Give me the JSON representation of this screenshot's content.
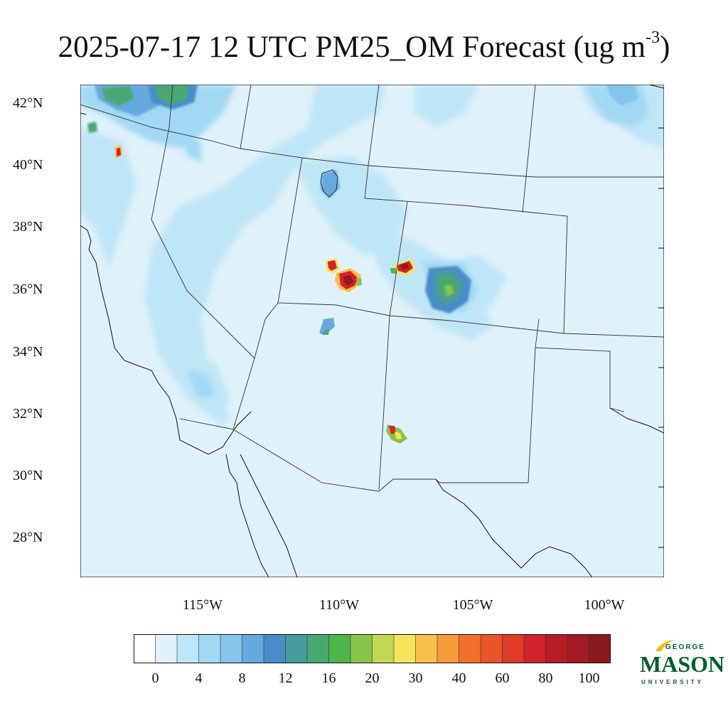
{
  "title": {
    "prefix": "2025-07-17 12 UTC PM25_OM Forecast (ug m",
    "superscript": "-3",
    "suffix": ")"
  },
  "map": {
    "lat_labels": [
      "42°N",
      "40°N",
      "38°N",
      "36°N",
      "34°N",
      "32°N",
      "30°N",
      "28°N"
    ],
    "lon_labels": [
      "115°W",
      "110°W",
      "105°W",
      "100°W"
    ],
    "background_color": "#dff1fa",
    "hotspots": [
      {
        "name": "utah-fire-1",
        "peak_level": "100+"
      },
      {
        "name": "colorado-fire",
        "peak_level": "100+"
      },
      {
        "name": "nm-smoke-cluster",
        "peak_level": "16-20"
      },
      {
        "name": "nevada-fire",
        "peak_level": "60"
      },
      {
        "name": "arizona-fire",
        "peak_level": "16"
      },
      {
        "name": "southern-nm-fire",
        "peak_level": "80"
      }
    ]
  },
  "colorbar": {
    "colors": [
      "#ffffff",
      "#dff1fa",
      "#bfe6f7",
      "#a1d9f3",
      "#85c5ea",
      "#66a9de",
      "#4a8cca",
      "#479a9e",
      "#48a872",
      "#4db64a",
      "#88c44b",
      "#c4d655",
      "#f6e55a",
      "#f8bf4a",
      "#f69a3a",
      "#f2702c",
      "#e95428",
      "#e03b26",
      "#d2222a",
      "#b81c27",
      "#a21a23",
      "#8a1a1d"
    ],
    "labels": [
      "0",
      "4",
      "8",
      "12",
      "16",
      "20",
      "30",
      "40",
      "60",
      "80",
      "100"
    ]
  },
  "logo": {
    "line1": "GEORGE",
    "line2": "MASON",
    "line3": "UNIVERSITY"
  }
}
